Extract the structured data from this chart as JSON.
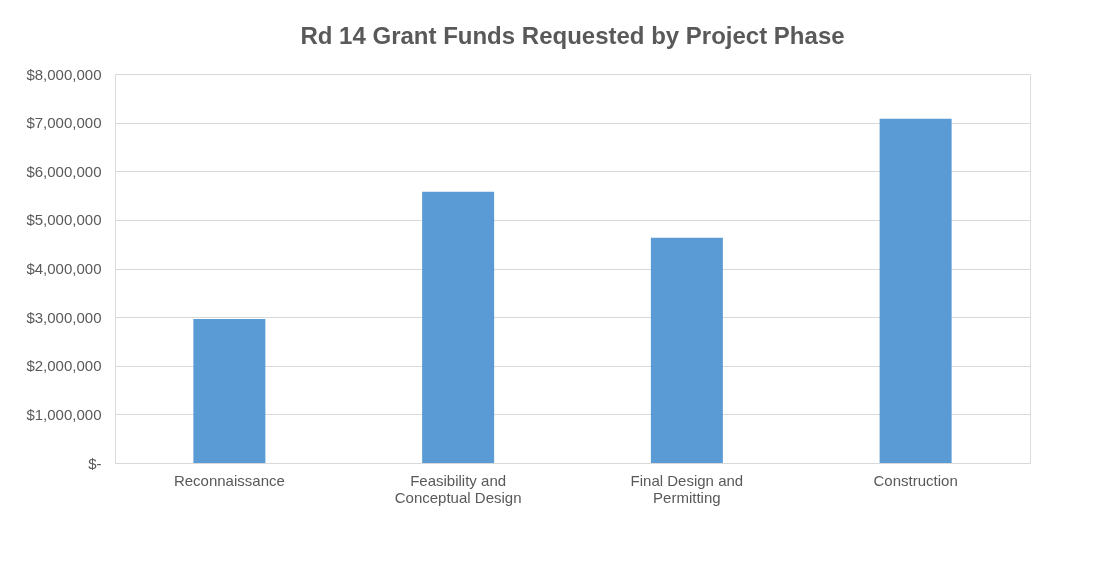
{
  "chart_data": {
    "type": "bar",
    "title": "Rd 14 Grant Funds Requested by Project Phase",
    "categories": [
      "Reconnaissance",
      "Feasibility and Conceptual Design",
      "Final Design and Permitting",
      "Construction"
    ],
    "values": [
      2960000,
      5580000,
      4630000,
      7080000
    ],
    "color": "#5b9bd5",
    "ylim": [
      0,
      8000000
    ],
    "yticks": [
      {
        "value": 0,
        "label": "$-"
      },
      {
        "value": 1000000,
        "label": "$1,000,000"
      },
      {
        "value": 2000000,
        "label": "$2,000,000"
      },
      {
        "value": 3000000,
        "label": "$3,000,000"
      },
      {
        "value": 4000000,
        "label": "$4,000,000"
      },
      {
        "value": 5000000,
        "label": "$5,000,000"
      },
      {
        "value": 6000000,
        "label": "$6,000,000"
      },
      {
        "value": 7000000,
        "label": "$7,000,000"
      },
      {
        "value": 8000000,
        "label": "$8,000,000"
      }
    ],
    "grid": "y"
  }
}
